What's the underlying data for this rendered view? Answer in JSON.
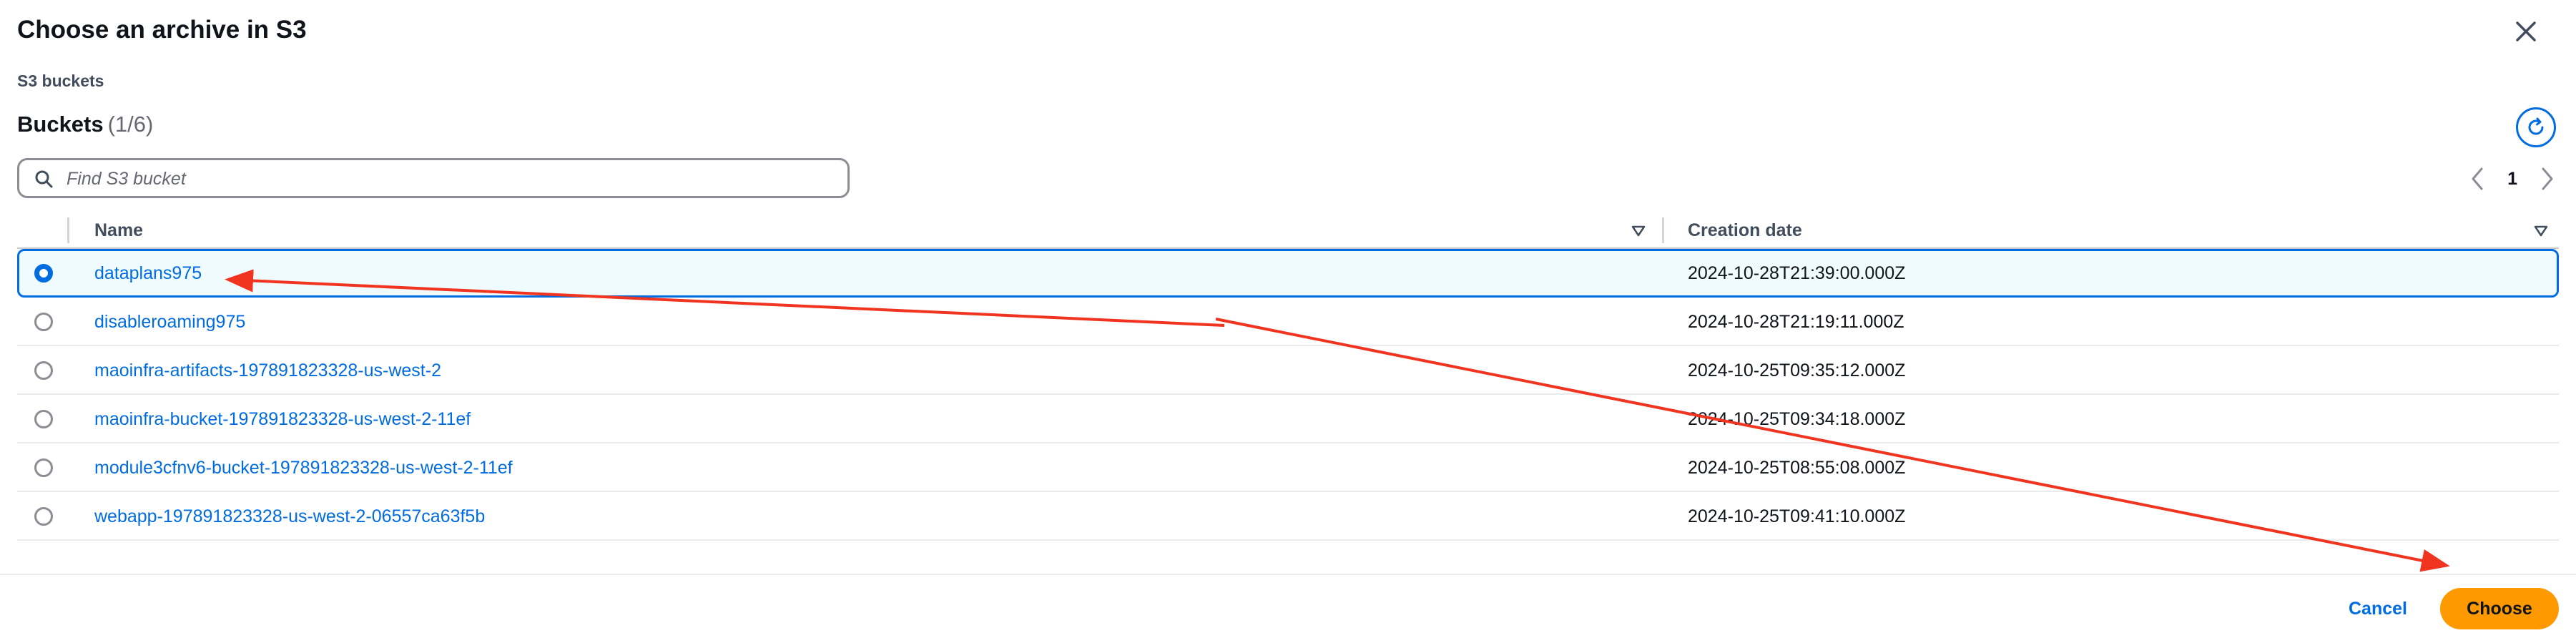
{
  "dialog": {
    "title": "Choose an archive in S3",
    "section_label": "S3 buckets"
  },
  "buckets": {
    "heading": "Buckets",
    "count": "(1/6)",
    "search_placeholder": "Find S3 bucket",
    "current_page": "1",
    "columns": {
      "name": "Name",
      "creation_date": "Creation date"
    },
    "rows": [
      {
        "name": "dataplans975",
        "date": "2024-10-28T21:39:00.000Z",
        "selected": true
      },
      {
        "name": "disableroaming975",
        "date": "2024-10-28T21:19:11.000Z",
        "selected": false
      },
      {
        "name": "maoinfra-artifacts-197891823328-us-west-2",
        "date": "2024-10-25T09:35:12.000Z",
        "selected": false
      },
      {
        "name": "maoinfra-bucket-197891823328-us-west-2-11ef",
        "date": "2024-10-25T09:34:18.000Z",
        "selected": false
      },
      {
        "name": "module3cfnv6-bucket-197891823328-us-west-2-11ef",
        "date": "2024-10-25T08:55:08.000Z",
        "selected": false
      },
      {
        "name": "webapp-197891823328-us-west-2-06557ca63f5b",
        "date": "2024-10-25T09:41:10.000Z",
        "selected": false
      }
    ]
  },
  "footer": {
    "cancel_label": "Cancel",
    "choose_label": "Choose"
  },
  "colors": {
    "link": "#006ce0",
    "primary_button": "#ff9900",
    "annotation_arrow": "#f0341f"
  },
  "icons": {
    "close": "close-icon",
    "refresh": "refresh-icon",
    "search": "search-icon",
    "prev_page": "chevron-left-icon",
    "next_page": "chevron-right-icon",
    "sort": "sort-down-icon"
  }
}
